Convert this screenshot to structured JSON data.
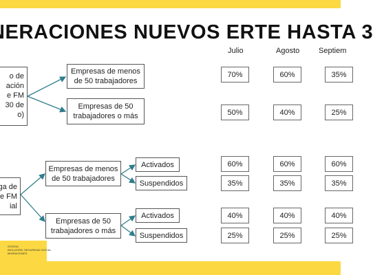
{
  "title": "NERACIONES NUEVOS ERTE HASTA 3",
  "months": [
    "Julio",
    "Agosto",
    "Septiem"
  ],
  "left_boxes": [
    {
      "lines": [
        "o de",
        "ación",
        "e FM",
        "30 de",
        "o)"
      ]
    },
    {
      "lines": [
        "ga de",
        "e FM",
        "ial"
      ]
    }
  ],
  "mid_boxes": [
    {
      "label": "Empresas de menos de 50 trabajadores"
    },
    {
      "label": "Empresas de 50 trabajadores o más"
    },
    {
      "label": "Empresas de menos de 50 trabajadores"
    },
    {
      "label": "Empresas de 50 trabajadores o más"
    }
  ],
  "status_boxes": [
    {
      "label": "Activados"
    },
    {
      "label": "Suspendidos"
    },
    {
      "label": "Activados"
    },
    {
      "label": "Suspendidos"
    }
  ],
  "rows": [
    {
      "values": [
        "70%",
        "60%",
        "35%"
      ]
    },
    {
      "values": [
        "50%",
        "40%",
        "25%"
      ]
    },
    {
      "values": [
        "60%",
        "60%",
        "60%"
      ]
    },
    {
      "values": [
        "35%",
        "35%",
        "35%"
      ]
    },
    {
      "values": [
        "40%",
        "40%",
        "40%"
      ]
    },
    {
      "values": [
        "25%",
        "25%",
        "25%"
      ]
    }
  ],
  "logo": {
    "lines": [
      "ISTERIO",
      "INCLUSIÓN, SEGURIDAD SOCIAL",
      "MIGRACIONES"
    ]
  },
  "colors": {
    "band": "#fcd943",
    "arrow": "#2f7d8c",
    "border": "#555555"
  }
}
